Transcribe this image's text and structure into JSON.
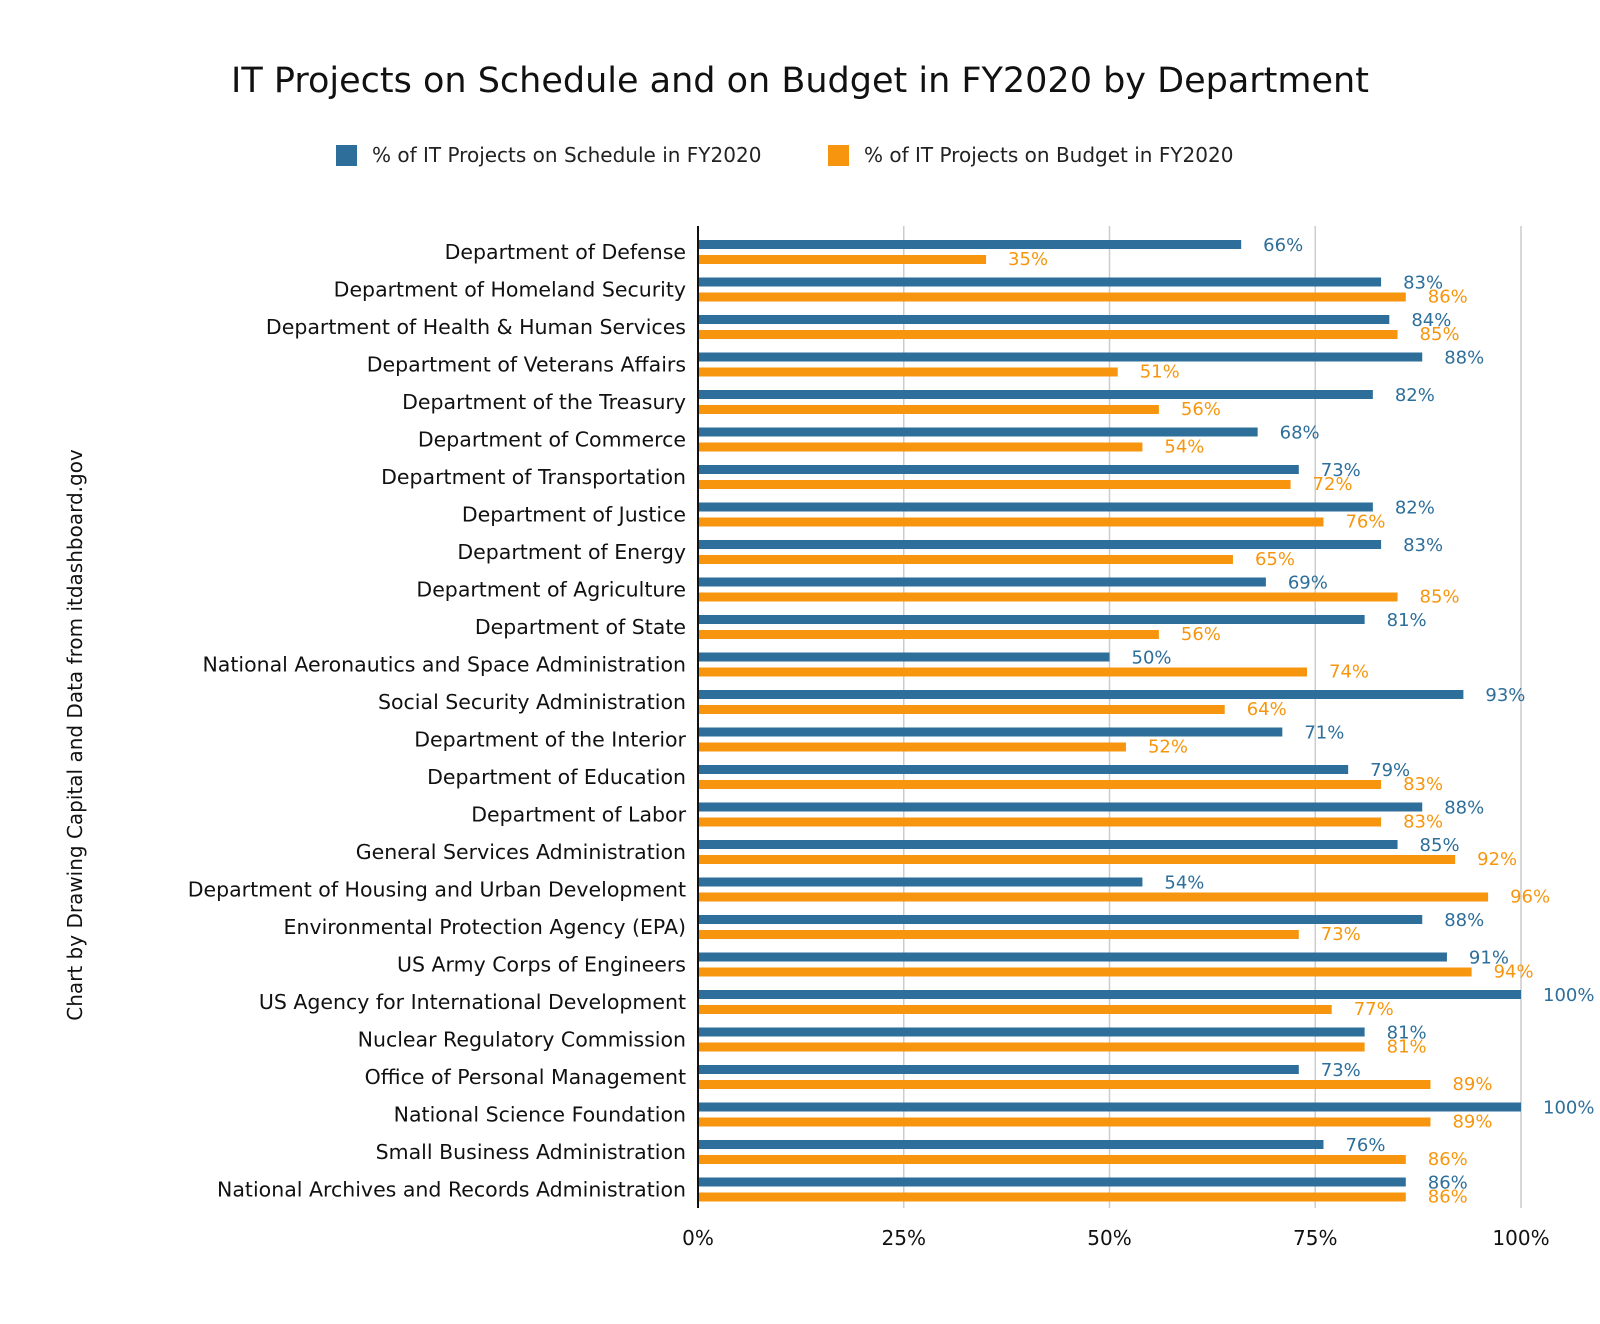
{
  "chart_data": {
    "type": "bar",
    "orientation": "horizontal",
    "title": "IT Projects on Schedule and on Budget in FY2020 by Department",
    "source_note": "Chart by Drawing Capital and Data from itdashboard.gov",
    "xlim": [
      0,
      100
    ],
    "x_ticks": [
      "0%",
      "25%",
      "50%",
      "75%",
      "100%"
    ],
    "x_tick_values": [
      0,
      25,
      50,
      75,
      100
    ],
    "grid": true,
    "legend_position": "top",
    "categories": [
      "Department of Defense",
      "Department of Homeland Security",
      "Department of Health & Human Services",
      "Department of Veterans Affairs",
      "Department of the Treasury",
      "Department of Commerce",
      "Department of Transportation",
      "Department of Justice",
      "Department of Energy",
      "Department of Agriculture",
      "Department of State",
      "National Aeronautics and Space Administration",
      "Social Security Administration",
      "Department of the Interior",
      "Department of Education",
      "Department of Labor",
      "General Services Administration",
      "Department of Housing and Urban Development",
      "Environmental Protection Agency (EPA)",
      "US Army Corps of Engineers",
      "US Agency for International Development",
      "Nuclear Regulatory Commission",
      "Office of Personal Management",
      "National Science Foundation",
      "Small Business Administration",
      "National Archives and Records Administration"
    ],
    "series": [
      {
        "name": "% of IT Projects on Schedule in FY2020",
        "color": "#2d6e9a",
        "values": [
          66,
          83,
          84,
          88,
          82,
          68,
          73,
          82,
          83,
          69,
          81,
          50,
          93,
          71,
          79,
          88,
          85,
          54,
          88,
          91,
          100,
          81,
          73,
          100,
          76,
          86
        ],
        "labels": [
          "66%",
          "83%",
          "84%",
          "88%",
          "82%",
          "68%",
          "73%",
          "82%",
          "83%",
          "69%",
          "81%",
          "50%",
          "93%",
          "71%",
          "79%",
          "88%",
          "85%",
          "54%",
          "88%",
          "91%",
          "100%",
          "81%",
          "73%",
          "100%",
          "76%",
          "86%"
        ]
      },
      {
        "name": "% of IT Projects on Budget in FY2020",
        "color": "#f7960e",
        "values": [
          35,
          86,
          85,
          51,
          56,
          54,
          72,
          76,
          65,
          85,
          56,
          74,
          64,
          52,
          83,
          83,
          92,
          96,
          73,
          94,
          77,
          81,
          89,
          89,
          86,
          86
        ],
        "labels": [
          "35%",
          "86%",
          "85%",
          "51%",
          "56%",
          "54%",
          "72%",
          "76%",
          "65%",
          "85%",
          "56%",
          "74%",
          "64%",
          "52%",
          "83%",
          "83%",
          "92%",
          "96%",
          "73%",
          "94%",
          "77%",
          "81%",
          "89%",
          "89%",
          "86%",
          "86%"
        ]
      }
    ]
  }
}
